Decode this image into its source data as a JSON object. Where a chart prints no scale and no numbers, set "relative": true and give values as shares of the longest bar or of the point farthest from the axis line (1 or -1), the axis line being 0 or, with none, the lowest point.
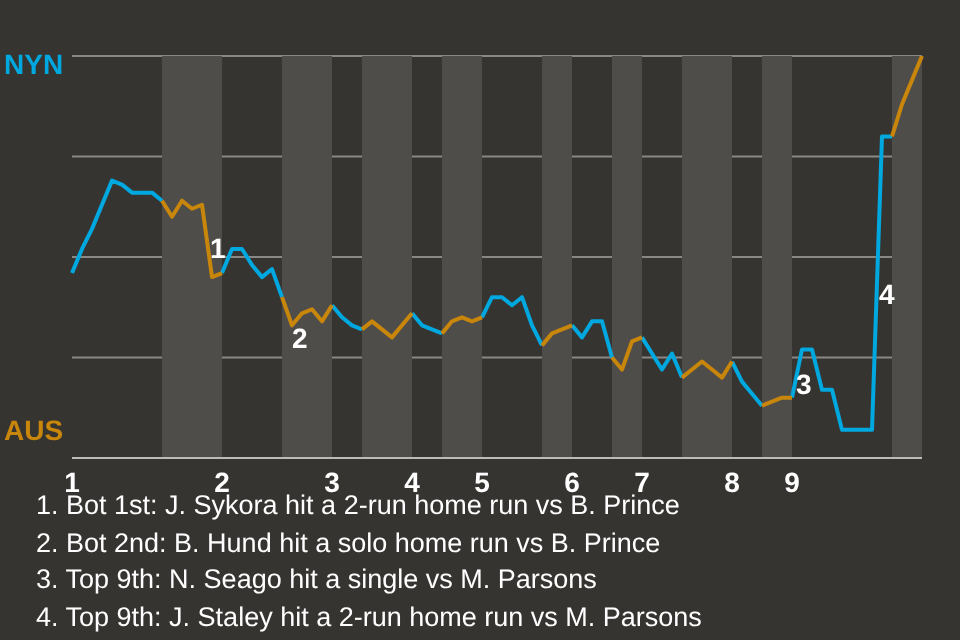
{
  "chart_data": {
    "type": "line",
    "relative": true,
    "grid": "y",
    "categories": [
      "1",
      null,
      null,
      null,
      null,
      null,
      null,
      null,
      null,
      null,
      null,
      null,
      null,
      null,
      null,
      "2",
      null,
      null,
      null,
      null,
      null,
      null,
      null,
      null,
      null,
      null,
      "3",
      null,
      null,
      null,
      null,
      null,
      null,
      null,
      "4",
      null,
      null,
      null,
      null,
      null,
      null,
      "5",
      null,
      null,
      null,
      null,
      null,
      null,
      null,
      null,
      "6",
      null,
      null,
      null,
      null,
      null,
      null,
      "7",
      null,
      null,
      null,
      null,
      null,
      null,
      null,
      null,
      "8",
      null,
      null,
      null,
      null,
      null,
      "9",
      null,
      null,
      null,
      null,
      null,
      null,
      null,
      null,
      null,
      null,
      null,
      null,
      null
    ],
    "series": [
      {
        "name": "NYN",
        "color": "#00a8e0",
        "values": [
          0.46,
          0.52,
          0.57,
          0.63,
          0.69,
          0.68,
          0.66,
          0.66,
          0.66,
          0.64,
          null,
          null,
          null,
          null,
          null,
          0.46,
          0.52,
          0.52,
          0.48,
          0.45,
          0.47,
          0.4,
          null,
          null,
          null,
          null,
          0.38,
          0.35,
          0.33,
          0.32,
          null,
          null,
          null,
          null,
          0.36,
          0.33,
          0.32,
          0.31,
          null,
          null,
          null,
          0.35,
          0.4,
          0.4,
          0.38,
          0.4,
          0.33,
          0.28,
          null,
          null,
          0.33,
          0.3,
          0.34,
          0.34,
          0.25,
          null,
          null,
          0.3,
          0.26,
          0.22,
          0.26,
          0.2,
          null,
          null,
          null,
          null,
          0.24,
          0.19,
          0.16,
          0.13,
          null,
          null,
          0.15,
          0.27,
          0.27,
          0.17,
          0.17,
          0.07,
          0.07,
          0.07,
          0.07,
          0.8,
          0.8,
          null,
          null,
          null
        ]
      },
      {
        "name": "AUS",
        "color": "#c8860a",
        "values": [
          null,
          null,
          null,
          null,
          null,
          null,
          null,
          null,
          null,
          0.64,
          0.6,
          0.64,
          0.62,
          0.63,
          0.45,
          0.46,
          null,
          null,
          null,
          null,
          null,
          0.4,
          0.33,
          0.36,
          0.37,
          0.34,
          0.38,
          null,
          null,
          0.32,
          0.34,
          0.32,
          0.3,
          0.33,
          0.36,
          null,
          null,
          0.31,
          0.34,
          0.35,
          0.34,
          0.35,
          null,
          null,
          null,
          null,
          null,
          0.28,
          0.31,
          0.32,
          0.33,
          null,
          null,
          null,
          0.25,
          0.22,
          0.29,
          0.3,
          null,
          null,
          null,
          0.2,
          0.22,
          0.24,
          0.22,
          0.2,
          0.24,
          null,
          null,
          0.13,
          0.14,
          0.15,
          0.15,
          null,
          null,
          null,
          null,
          null,
          null,
          null,
          null,
          null,
          0.8,
          0.88,
          0.94,
          1.0
        ]
      }
    ],
    "annotations": [
      "1",
      "2",
      "3",
      "4",
      "1. Bot 1st: J. Sykora hit a 2-run home run vs B. Prince",
      "2. Bot 2nd: B. Hund hit a solo home run vs B. Prince",
      "3. Top 9th: N. Seago hit a single vs M. Parsons",
      "4. Top 9th: J. Staley hit a 2-run home run vs M. Parsons"
    ]
  }
}
